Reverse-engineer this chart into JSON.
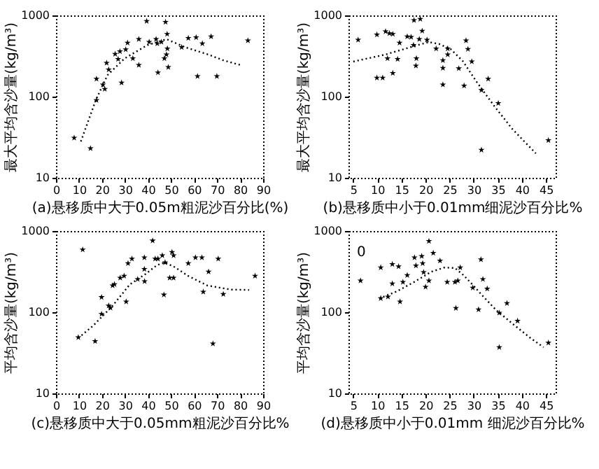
{
  "chart_data": [
    {
      "type": "scatter",
      "xlabel": "(a)悬移质中大于0.05m粗泥沙百分比(%)",
      "ylabel": "最大平均含沙量(kg/m³)",
      "xlim": [
        0,
        90
      ],
      "xticks": [
        0,
        10,
        20,
        30,
        40,
        50,
        60,
        70,
        80,
        90
      ],
      "ylim": [
        10,
        1000
      ],
      "yticks": [
        10,
        100,
        1000
      ],
      "log": "y",
      "series": [
        {
          "type": "scatter",
          "marker": "star",
          "color": "#000000",
          "x": [
            7.9,
            15,
            17.6,
            17.6,
            20.4,
            21.2,
            22,
            22.9,
            25.7,
            27,
            27.8,
            28.5,
            30.3,
            31.1,
            33.4,
            36,
            36,
            39.4,
            40.5,
            43.5,
            44,
            44.3,
            45.8,
            47.1,
            47.6,
            48,
            48.3,
            48.4,
            48.8,
            54.6,
            57.5,
            60.9,
            61.5,
            63.6,
            69.9,
            67.4,
            83.4
          ],
          "values": [
            31,
            23,
            165,
            90,
            140,
            124,
            260,
            215,
            335,
            290,
            360,
            148,
            380,
            460,
            295,
            510,
            244,
            850,
            470,
            510,
            450,
            198,
            470,
            295,
            830,
            330,
            590,
            390,
            230,
            405,
            525,
            535,
            178,
            450,
            178,
            550,
            490
          ]
        },
        {
          "type": "line",
          "color": "#000000",
          "line_style": "dotted",
          "x": [
            10.8,
            17.4,
            22.4,
            29.8,
            39.7,
            48,
            56.2,
            66.1,
            72.7,
            80.1
          ],
          "values": [
            28,
            92,
            184,
            295,
            430,
            510,
            405,
            330,
            280,
            245
          ]
        }
      ]
    },
    {
      "type": "scatter",
      "xlabel": "(b)悬移质中小于0.01mm细泥沙百分比%",
      "ylabel": "最大平均含沙量(kg/m³)",
      "xlim": [
        4,
        47
      ],
      "xticks": [
        5,
        10,
        15,
        20,
        25,
        30,
        35,
        40,
        45
      ],
      "ylim": [
        10,
        1000
      ],
      "yticks": [
        10,
        100,
        1000
      ],
      "log": "y",
      "series": [
        {
          "type": "scatter",
          "marker": "star",
          "color": "#000000",
          "x": [
            6,
            9.9,
            9.9,
            11.1,
            11.7,
            12.5,
            13.2,
            12.1,
            13.2,
            14.2,
            14.6,
            16.2,
            17,
            17.5,
            18,
            18.1,
            17.6,
            18.9,
            18.7,
            19.3,
            20.3,
            22.2,
            23.6,
            23.6,
            23.6,
            24.6,
            24.6,
            26.9,
            28,
            28.4,
            28.8,
            29.6,
            31.6,
            31.6,
            33,
            35.1,
            45.5
          ],
          "values": [
            500,
            580,
            170,
            170,
            635,
            600,
            590,
            295,
            195,
            290,
            460,
            550,
            540,
            430,
            240,
            295,
            870,
            900,
            510,
            645,
            500,
            390,
            280,
            225,
            140,
            390,
            330,
            222,
            136,
            490,
            385,
            270,
            120,
            22,
            165,
            83,
            29
          ]
        },
        {
          "type": "line",
          "color": "#000000",
          "line_style": "dotted",
          "x": [
            5,
            11.7,
            18.3,
            20.7,
            22.8,
            25.2,
            27.7,
            30.6,
            34.3,
            38,
            41.6,
            42.9
          ],
          "values": [
            270,
            330,
            430,
            470,
            445,
            385,
            275,
            152,
            76,
            40,
            24,
            20
          ]
        }
      ]
    },
    {
      "type": "scatter",
      "xlabel": "(c)悬移质中大于0.05mm粗泥沙百分比%",
      "ylabel": "平均含沙量(kg/m³)",
      "xlim": [
        0,
        90
      ],
      "xticks": [
        0,
        10,
        20,
        30,
        40,
        50,
        60,
        70,
        80,
        90
      ],
      "ylim": [
        10,
        1000
      ],
      "yticks": [
        10,
        100,
        1000
      ],
      "log": "y",
      "series": [
        {
          "type": "scatter",
          "marker": "star",
          "color": "#000000",
          "x": [
            9.7,
            11.6,
            17,
            19.8,
            19.8,
            22.9,
            23.7,
            24.6,
            25.4,
            27.9,
            29.6,
            30.5,
            31.3,
            33,
            35.5,
            38.4,
            38.4,
            38.5,
            42,
            43.1,
            44.3,
            46.2,
            46.9,
            47.4,
            49.4,
            51.1,
            50.4,
            51.1,
            57.5,
            60.6,
            63.4,
            64,
            66.3,
            68.2,
            70.5,
            72.7,
            86.5
          ],
          "values": [
            49,
            590,
            44,
            153,
            95,
            120,
            113,
            213,
            220,
            265,
            280,
            135,
            400,
            455,
            255,
            470,
            340,
            240,
            760,
            455,
            455,
            500,
            164,
            410,
            265,
            265,
            550,
            500,
            400,
            470,
            470,
            178,
            315,
            41,
            455,
            167,
            280
          ]
        },
        {
          "type": "line",
          "color": "#000000",
          "line_style": "dotted",
          "x": [
            9.7,
            16.1,
            24.6,
            32.1,
            38.9,
            43.9,
            47.3,
            51.5,
            57.4,
            65.8,
            75.9,
            83.9
          ],
          "values": [
            48,
            68,
            120,
            220,
            295,
            380,
            410,
            360,
            280,
            213,
            190,
            188
          ]
        }
      ]
    },
    {
      "type": "scatter",
      "xlabel": "(d)悬移质中小于0.01mm 细泥沙百分比%",
      "ylabel": "平均含沙量(kg/m³)",
      "xlim": [
        4,
        47
      ],
      "xticks": [
        5,
        10,
        15,
        20,
        25,
        30,
        35,
        40,
        45
      ],
      "ylim": [
        10,
        1000
      ],
      "yticks": [
        10,
        100,
        1000
      ],
      "log": "y",
      "annotations": [
        "0"
      ],
      "series": [
        {
          "type": "scatter",
          "marker": "star",
          "color": "#000000",
          "x": [
            6.5,
            10.7,
            13.1,
            14.4,
            10.7,
            12.2,
            13.1,
            14.7,
            15.3,
            16.2,
            17.7,
            19.2,
            18,
            19.4,
            19.6,
            20,
            20.7,
            21.6,
            20.7,
            23,
            24.5,
            26.1,
            26.7,
            27.2,
            26.3,
            29.8,
            31,
            31.5,
            31.9,
            32.8,
            35.3,
            35.3,
            36.9,
            39.1,
            45.5
          ],
          "values": [
            245,
            355,
            390,
            365,
            148,
            155,
            225,
            135,
            235,
            285,
            470,
            490,
            375,
            400,
            310,
            205,
            750,
            535,
            245,
            430,
            235,
            235,
            245,
            355,
            112,
            200,
            108,
            445,
            255,
            195,
            98,
            37,
            129,
            78,
            42
          ]
        },
        {
          "type": "line",
          "color": "#000000",
          "line_style": "dotted",
          "x": [
            10.4,
            14,
            17.6,
            21.2,
            23.9,
            26.1,
            27.9,
            29.7,
            31.9,
            34.6,
            38.2,
            41.8,
            44.5
          ],
          "values": [
            148,
            180,
            235,
            315,
            355,
            350,
            285,
            220,
            158,
            107,
            71,
            48,
            37
          ]
        }
      ]
    }
  ]
}
